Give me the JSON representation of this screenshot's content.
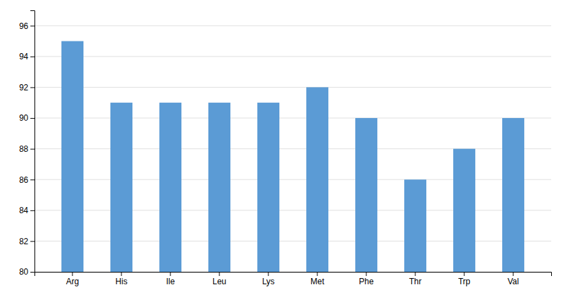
{
  "chart_data": {
    "type": "bar",
    "categories": [
      "Arg",
      "His",
      "Ile",
      "Leu",
      "Lys",
      "Met",
      "Phe",
      "Thr",
      "Trp",
      "Val"
    ],
    "values": [
      95,
      91,
      91,
      91,
      91,
      92,
      90,
      86,
      88,
      90
    ],
    "color": "#5b9bd5",
    "ylim": [
      80,
      97
    ],
    "yticks": [
      80,
      82,
      84,
      86,
      88,
      90,
      92,
      94,
      96
    ],
    "grid": true
  }
}
